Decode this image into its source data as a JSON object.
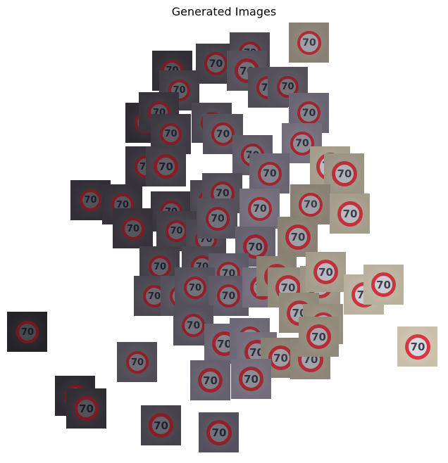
{
  "figure": {
    "title": "Generated Images",
    "sign_label": "70"
  }
}
